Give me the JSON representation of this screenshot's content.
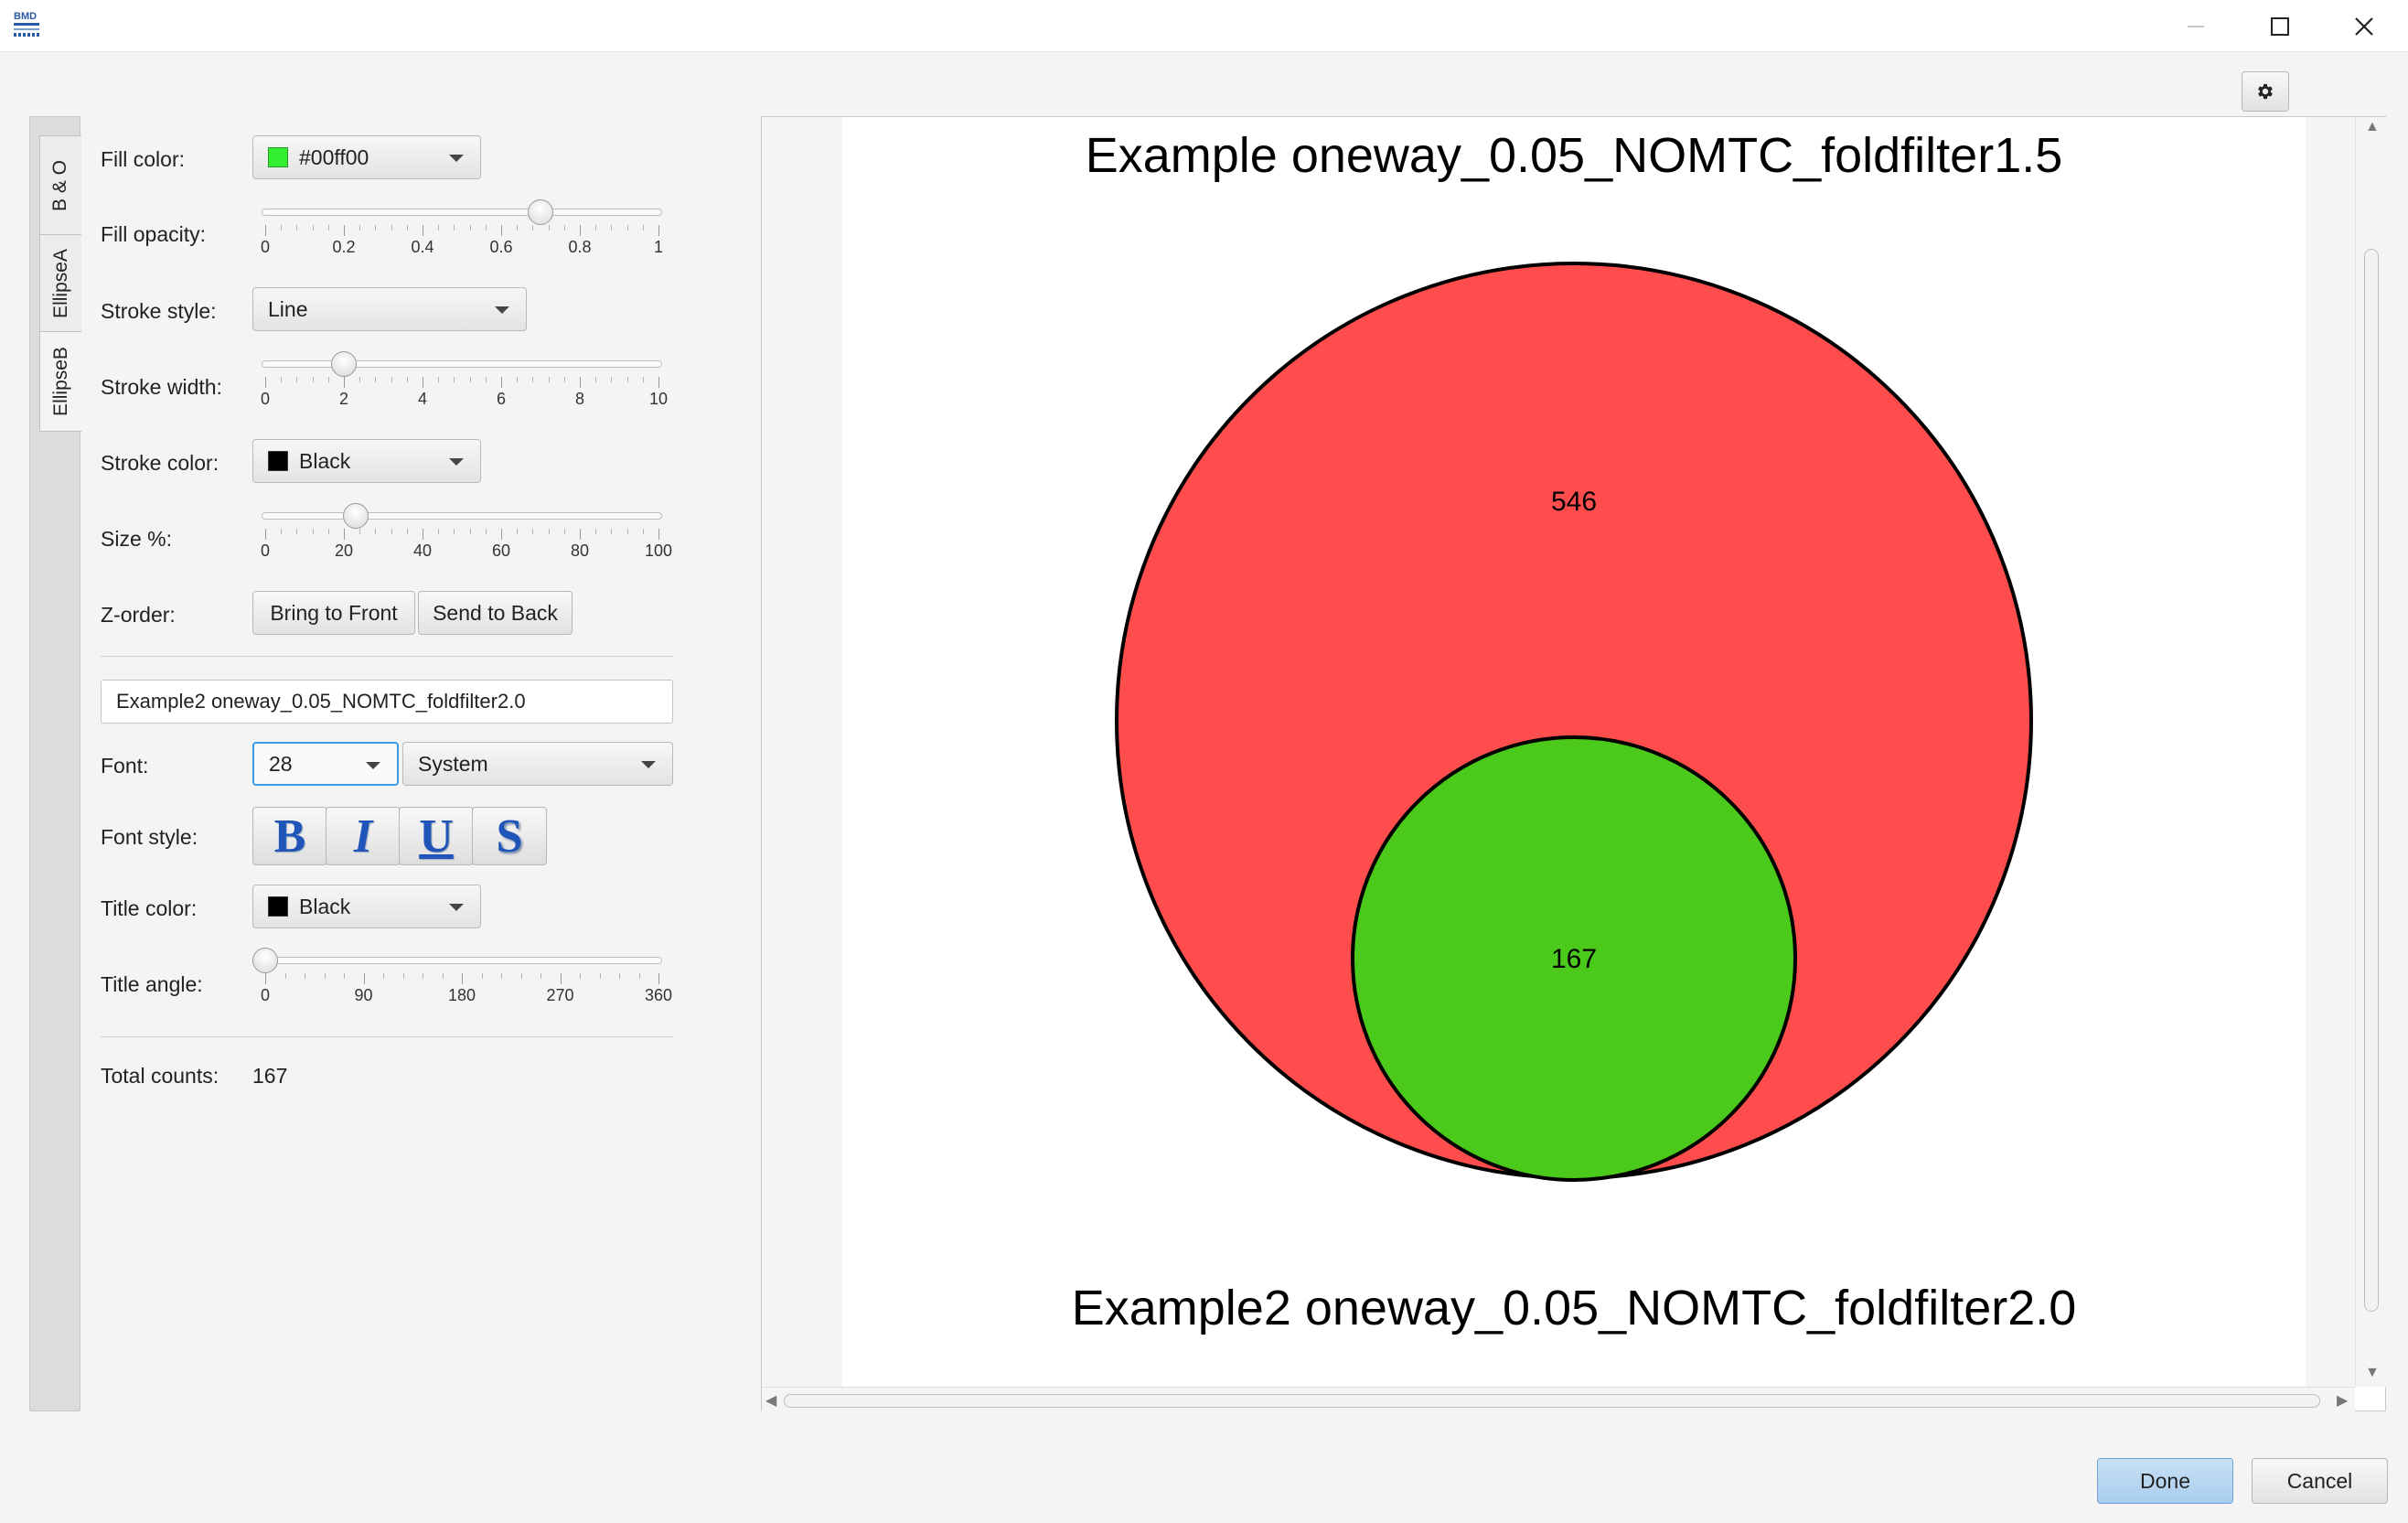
{
  "window": {
    "logo_text": "BMD",
    "icons": {
      "minimize": "minimize-icon",
      "maximize": "maximize-icon",
      "close": "close-icon"
    }
  },
  "tabs": [
    {
      "label": "B & O",
      "active": false
    },
    {
      "label": "EllipseA",
      "active": false
    },
    {
      "label": "EllipseB",
      "active": true
    }
  ],
  "form": {
    "fill_color": {
      "label": "Fill color:",
      "value": "#00ff00",
      "swatch": "#33ee33"
    },
    "fill_opacity": {
      "label": "Fill opacity:",
      "value": 0.7,
      "min": 0,
      "max": 1,
      "ticks": [
        "0",
        "0.2",
        "0.4",
        "0.6",
        "0.8",
        "1"
      ]
    },
    "stroke_style": {
      "label": "Stroke style:",
      "value": "Line"
    },
    "stroke_width": {
      "label": "Stroke width:",
      "value": 2,
      "min": 0,
      "max": 10,
      "ticks": [
        "0",
        "2",
        "4",
        "6",
        "8",
        "10"
      ]
    },
    "stroke_color": {
      "label": "Stroke color:",
      "value": "Black",
      "swatch": "#000000"
    },
    "size_pct": {
      "label": "Size %:",
      "value": 23,
      "min": 0,
      "max": 100,
      "ticks": [
        "0",
        "20",
        "40",
        "60",
        "80",
        "100"
      ]
    },
    "z_order": {
      "label": "Z-order:",
      "front": "Bring to Front",
      "back": "Send to Back"
    },
    "title_text": "Example2 oneway_0.05_NOMTC_foldfilter2.0",
    "font": {
      "label": "Font:",
      "size": "28",
      "family": "System"
    },
    "font_style": {
      "label": "Font style:",
      "bold": "B",
      "italic": "I",
      "underline": "U",
      "shadow": "S"
    },
    "title_color": {
      "label": "Title color:",
      "value": "Black",
      "swatch": "#000000"
    },
    "title_angle": {
      "label": "Title angle:",
      "value": 0,
      "min": 0,
      "max": 360,
      "ticks": [
        "0",
        "90",
        "180",
        "270",
        "360"
      ]
    },
    "total_counts": {
      "label": "Total counts:",
      "value": "167"
    }
  },
  "preview": {
    "title_top": "Example oneway_0.05_NOMTC_foldfilter1.5",
    "title_bottom": "Example2 oneway_0.05_NOMTC_foldfilter2.0",
    "ellipse_a": {
      "count": "546",
      "fill": "#ff4d4d"
    },
    "ellipse_b": {
      "count": "167",
      "fill": "#4cca1b"
    }
  },
  "buttons": {
    "done": "Done",
    "cancel": "Cancel",
    "settings_icon": "gear-icon"
  }
}
